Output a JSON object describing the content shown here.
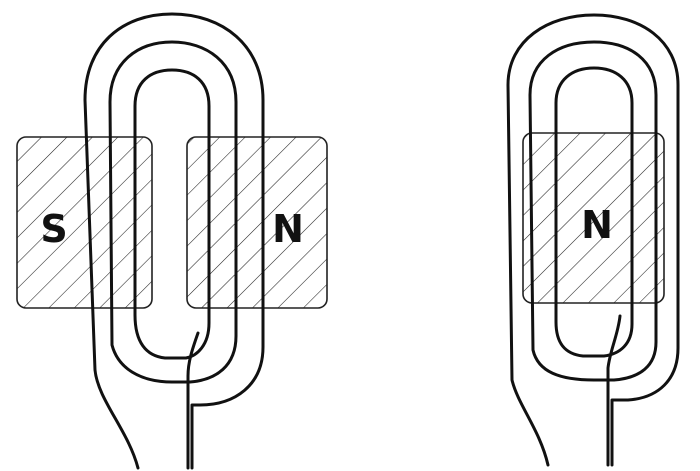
{
  "figures": [
    {
      "poles": [
        {
          "label": "S"
        },
        {
          "label": "N"
        }
      ]
    },
    {
      "poles": [
        {
          "label": "N"
        }
      ]
    }
  ],
  "colors": {
    "ink": "#111111",
    "background": "#ffffff"
  }
}
